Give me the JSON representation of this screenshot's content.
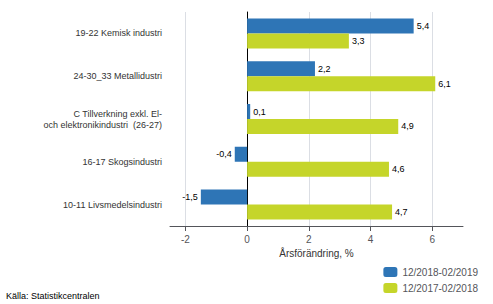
{
  "chart_data": {
    "type": "bar",
    "orientation": "horizontal",
    "categories": [
      "10-11 Livsmedelsindustri",
      "16-17 Skogsindustri",
      "C Tillverkning exkl. El-\noch elektronikindustri  (26-27)",
      "24-30_33 Metallidustri",
      "19-22 Kemisk industri"
    ],
    "series": [
      {
        "name": "12/2018-02/2019",
        "color": "#2E75B6",
        "values": [
          -1.5,
          -0.4,
          0.1,
          2.2,
          5.4
        ],
        "value_labels": [
          "-1,5",
          "-0,4",
          "0,1",
          "2,2",
          "5,4"
        ]
      },
      {
        "name": "12/2017-02/2018",
        "color": "#C5D52A",
        "values": [
          4.7,
          4.6,
          4.9,
          6.1,
          3.3
        ],
        "value_labels": [
          "4,7",
          "4,6",
          "4,9",
          "6,1",
          "3,3"
        ]
      }
    ],
    "xlabel": "Årsförändring, %",
    "xlim": [
      -2.5,
      7.0
    ],
    "xticks": [
      -2,
      0,
      2,
      4,
      6
    ],
    "grid": true,
    "data_labels": true,
    "legend": "lower right",
    "source": "Källa: Statistikcentralen"
  }
}
